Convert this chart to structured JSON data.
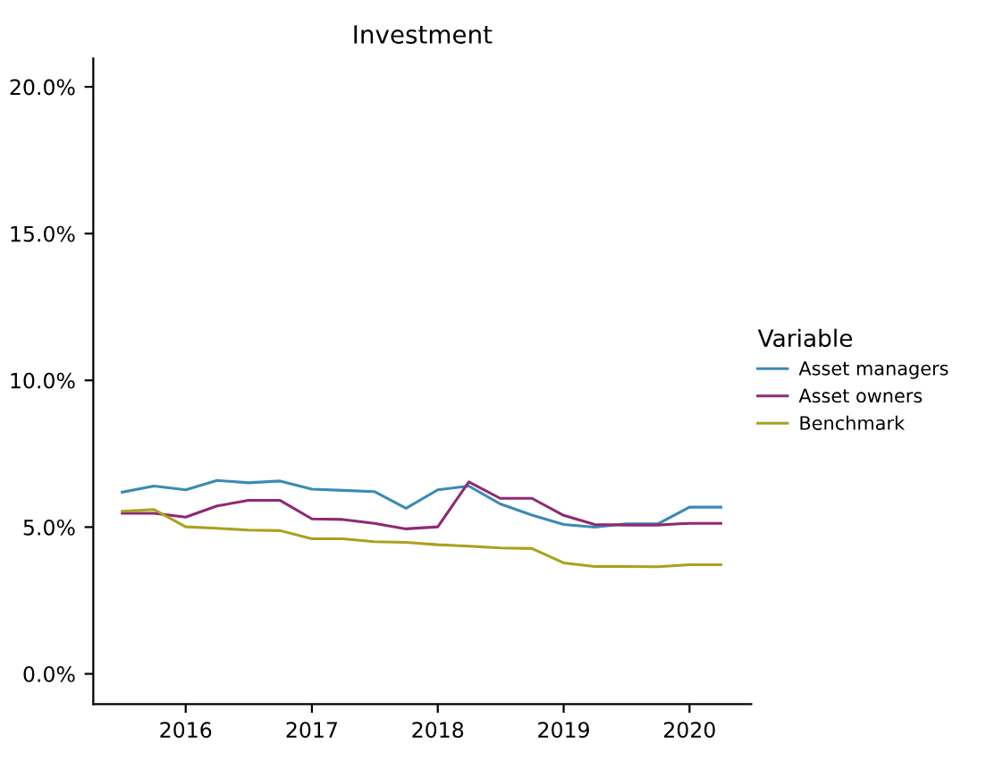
{
  "chart_data": {
    "type": "line",
    "title": "Investment",
    "legend_title": "Variable",
    "legend": "right",
    "x": [
      "2015-07-01",
      "2015-10-01",
      "2016-01-01",
      "2016-04-01",
      "2016-07-01",
      "2016-10-01",
      "2017-01-01",
      "2017-04-01",
      "2017-07-01",
      "2017-10-01",
      "2018-01-01",
      "2018-04-01",
      "2018-07-01",
      "2018-10-01",
      "2019-01-01",
      "2019-04-01",
      "2019-07-01",
      "2019-10-01",
      "2020-01-01",
      "2020-04-01"
    ],
    "series": [
      {
        "name": "Asset managers",
        "color": "#3b8ab5",
        "values": [
          6.19,
          6.4,
          6.27,
          6.59,
          6.51,
          6.57,
          6.29,
          6.25,
          6.21,
          5.64,
          6.27,
          6.4,
          5.79,
          5.41,
          5.09,
          5.0,
          5.11,
          5.11,
          5.68,
          5.68
        ]
      },
      {
        "name": "Asset owners",
        "color": "#8e2a74",
        "values": [
          5.47,
          5.47,
          5.34,
          5.72,
          5.91,
          5.91,
          5.28,
          5.26,
          5.13,
          4.94,
          5.01,
          6.54,
          5.98,
          5.98,
          5.4,
          5.09,
          5.07,
          5.07,
          5.13,
          5.13
        ]
      },
      {
        "name": "Benchmark",
        "color": "#a9a21c",
        "values": [
          5.54,
          5.6,
          5.01,
          4.96,
          4.9,
          4.88,
          4.6,
          4.6,
          4.5,
          4.48,
          4.4,
          4.35,
          4.29,
          4.27,
          3.78,
          3.66,
          3.66,
          3.65,
          3.72,
          3.72
        ]
      }
    ],
    "xlim": [
      "2015-04-08",
      "2020-06-28"
    ],
    "xticks": [
      {
        "value": "2016-01-01",
        "label": "2016"
      },
      {
        "value": "2017-01-01",
        "label": "2017"
      },
      {
        "value": "2018-01-01",
        "label": "2018"
      },
      {
        "value": "2019-01-01",
        "label": "2019"
      },
      {
        "value": "2020-01-01",
        "label": "2020"
      }
    ],
    "ylim": [
      -1.03,
      20.97
    ],
    "yticks": [
      {
        "value": 0,
        "label": "0.0%"
      },
      {
        "value": 5,
        "label": "5.0%"
      },
      {
        "value": 10,
        "label": "10.0%"
      },
      {
        "value": 15,
        "label": "15.0%"
      },
      {
        "value": 20,
        "label": "20.0%"
      }
    ],
    "grid": false,
    "marker": "none",
    "line_style": "solid"
  }
}
